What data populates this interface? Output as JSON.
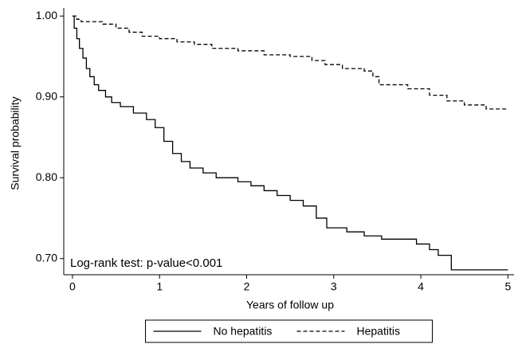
{
  "chart_data": {
    "type": "line",
    "step": true,
    "xlabel": "Years of follow up",
    "ylabel": "Survival probability",
    "annotation": "Log-rank test: p-value<0.001",
    "series": [
      {
        "name": "No hepatitis",
        "color": "#000000",
        "line_style": "solid",
        "x": [
          0,
          0.02,
          0.05,
          0.08,
          0.12,
          0.16,
          0.2,
          0.25,
          0.3,
          0.38,
          0.45,
          0.55,
          0.7,
          0.85,
          0.95,
          1.05,
          1.15,
          1.25,
          1.35,
          1.5,
          1.65,
          1.9,
          2.05,
          2.2,
          2.35,
          2.5,
          2.65,
          2.8,
          2.92,
          3.15,
          3.35,
          3.55,
          3.95,
          4.1,
          4.2,
          4.35,
          5
        ],
        "values": [
          1,
          0.985,
          0.972,
          0.96,
          0.948,
          0.935,
          0.925,
          0.915,
          0.908,
          0.9,
          0.893,
          0.888,
          0.88,
          0.872,
          0.862,
          0.845,
          0.83,
          0.82,
          0.812,
          0.806,
          0.8,
          0.795,
          0.79,
          0.784,
          0.778,
          0.772,
          0.765,
          0.75,
          0.738,
          0.733,
          0.728,
          0.724,
          0.718,
          0.711,
          0.704,
          0.686,
          0.686
        ]
      },
      {
        "name": "Hepatitis",
        "color": "#000000",
        "line_style": "dashed",
        "x": [
          0,
          0.05,
          0.1,
          0.35,
          0.5,
          0.65,
          0.8,
          1.0,
          1.2,
          1.4,
          1.6,
          1.9,
          2.2,
          2.5,
          2.75,
          2.9,
          3.1,
          3.35,
          3.45,
          3.52,
          3.85,
          4.1,
          4.3,
          4.5,
          4.75,
          5
        ],
        "values": [
          1,
          0.996,
          0.993,
          0.99,
          0.985,
          0.98,
          0.975,
          0.972,
          0.968,
          0.965,
          0.96,
          0.957,
          0.952,
          0.95,
          0.945,
          0.94,
          0.935,
          0.932,
          0.925,
          0.915,
          0.91,
          0.902,
          0.895,
          0.89,
          0.885,
          0.885
        ]
      }
    ],
    "xlim": [
      -0.1,
      5.07
    ],
    "xticks": [
      0,
      1,
      2,
      3,
      4,
      5
    ],
    "ylim": [
      0.68,
      1.01
    ],
    "yticks": [
      {
        "value": 0.7,
        "label": "0.70"
      },
      {
        "value": 0.8,
        "label": "0.80"
      },
      {
        "value": 0.9,
        "label": "0.90"
      },
      {
        "value": 1,
        "label": "1.00"
      }
    ],
    "grid": false,
    "legend": "bottom"
  }
}
